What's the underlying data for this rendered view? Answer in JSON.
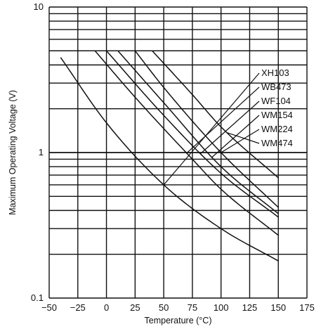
{
  "chart_data": {
    "type": "line",
    "xlabel": "Temperature (°C)",
    "ylabel": "Maximum Operating Voltage (V)",
    "xlim": [
      -50,
      175
    ],
    "ylim": [
      0.1,
      10
    ],
    "yscale": "log",
    "grid": true,
    "x_ticks": [
      -50,
      -25,
      0,
      25,
      50,
      75,
      100,
      125,
      150,
      175
    ],
    "x_tick_labels": [
      "−50",
      "−25",
      "0",
      "25",
      "50",
      "75",
      "100",
      "125",
      "150",
      "175"
    ],
    "y_tick_labels": [
      "0.1",
      "1",
      "10"
    ],
    "series": [
      {
        "name": "XH103",
        "x": [
          -40,
          0,
          50,
          100,
          150
        ],
        "y": [
          4.5,
          1.6,
          0.6,
          0.3,
          0.18
        ]
      },
      {
        "name": "WB473",
        "x": [
          -10,
          25,
          75,
          100,
          150
        ],
        "y": [
          5.0,
          2.4,
          0.9,
          0.56,
          0.27
        ]
      },
      {
        "name": "WF104",
        "x": [
          0,
          50,
          100,
          150
        ],
        "y": [
          5.0,
          1.8,
          0.72,
          0.36
        ]
      },
      {
        "name": "WM154",
        "x": [
          10,
          50,
          100,
          150
        ],
        "y": [
          5.0,
          2.2,
          0.8,
          0.38
        ]
      },
      {
        "name": "WM224",
        "x": [
          25,
          50,
          100,
          150
        ],
        "y": [
          5.0,
          2.8,
          1.0,
          0.42
        ]
      },
      {
        "name": "WM474",
        "x": [
          40,
          75,
          100,
          150
        ],
        "y": [
          5.0,
          2.5,
          1.5,
          0.67
        ]
      }
    ]
  }
}
